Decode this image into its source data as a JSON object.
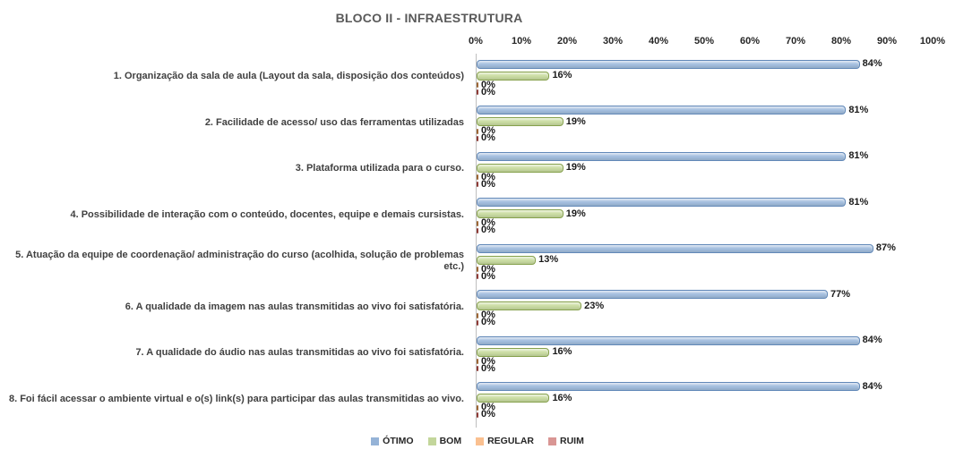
{
  "title": "BLOCO II - INFRAESTRUTURA",
  "chart_data": {
    "type": "bar",
    "orientation": "horizontal",
    "title": "BLOCO II - INFRAESTRUTURA",
    "xlim": [
      0,
      100
    ],
    "x_ticks": [
      "0%",
      "10%",
      "20%",
      "30%",
      "40%",
      "50%",
      "60%",
      "70%",
      "80%",
      "90%",
      "100%"
    ],
    "grid": false,
    "legend_position": "bottom",
    "value_suffix": "%",
    "categories": [
      "1. Organização da sala de aula (Layout da sala, disposição dos conteúdos)",
      "2. Facilidade de acesso/ uso das ferramentas utilizadas",
      "3. Plataforma utilizada para o curso.",
      "4. Possibilidade de interação com o conteúdo, docentes, equipe e demais cursistas.",
      "5. Atuação da equipe de coordenação/ administração do curso (acolhida, solução de problemas etc.)",
      "6. A qualidade da imagem nas aulas transmitidas ao vivo foi satisfatória.",
      "7. A qualidade do áudio nas aulas transmitidas ao vivo foi satisfatória.",
      "8. Foi fácil acessar o ambiente virtual e o(s) link(s) para participar das aulas transmitidas ao vivo."
    ],
    "series": [
      {
        "name": "ÓTIMO",
        "fill": "#A4BFDF",
        "border": "#6188B8",
        "legend_color": "#95B3D7",
        "values": [
          84,
          81,
          81,
          81,
          87,
          77,
          84,
          84
        ]
      },
      {
        "name": "BOM",
        "fill": "#CBDDA3",
        "border": "#86A14C",
        "legend_color": "#C3D69B",
        "values": [
          16,
          19,
          19,
          19,
          13,
          23,
          16,
          16
        ]
      },
      {
        "name": "REGULAR",
        "fill": "#E8A967",
        "border": "#9C6635",
        "legend_color": "#FAC090",
        "values": [
          0,
          0,
          0,
          0,
          0,
          0,
          0,
          0
        ]
      },
      {
        "name": "RUIM",
        "fill": "#B05A53",
        "border": "#8E3B37",
        "legend_color": "#D99694",
        "values": [
          0,
          0,
          0,
          0,
          0,
          0,
          0,
          0
        ]
      }
    ]
  },
  "colors": {
    "axis_line": "#BFBFBF",
    "title_text": "#595959",
    "label_text": "#404040",
    "value_text": "#1a1a1a"
  }
}
